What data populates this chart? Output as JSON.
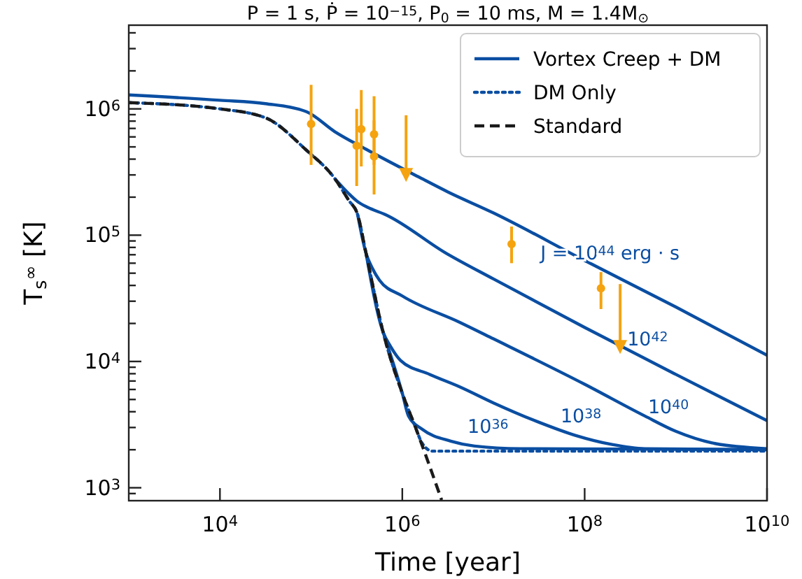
{
  "chart_data": {
    "type": "line",
    "title": "P = 1 s, Ṗ = 10$^{−15}$, P$_{0}$ = 10 ms, M = 1.4M$_{⊙}$",
    "xlabel": "Time [year]",
    "ylabel": "T$_{s}$$^{∞}$ [K]",
    "log": "xy",
    "legend": "top right",
    "xlim": [
      1000,
      10000000000
    ],
    "ylim": [
      790,
      4600000
    ],
    "xticks": [
      {
        "value": 10000,
        "label": "10$^{4}$"
      },
      {
        "value": 1000000,
        "label": "10$^{6}$"
      },
      {
        "value": 100000000,
        "label": "10$^{8}$"
      },
      {
        "value": 10000000000,
        "label": "10$^{10}$"
      }
    ],
    "yticks": [
      {
        "value": 900,
        "label": null
      },
      {
        "value": 1000,
        "label": "10$^{3}$"
      },
      {
        "value": 2000,
        "label": null
      },
      {
        "value": 3000,
        "label": null
      },
      {
        "value": 4000,
        "label": null
      },
      {
        "value": 5000,
        "label": null
      },
      {
        "value": 6000,
        "label": null
      },
      {
        "value": 7000,
        "label": null
      },
      {
        "value": 8000,
        "label": null
      },
      {
        "value": 9000,
        "label": null
      },
      {
        "value": 10000,
        "label": "10$^{4}$"
      },
      {
        "value": 20000,
        "label": null
      },
      {
        "value": 30000,
        "label": null
      },
      {
        "value": 40000,
        "label": null
      },
      {
        "value": 50000,
        "label": null
      },
      {
        "value": 60000,
        "label": null
      },
      {
        "value": 70000,
        "label": null
      },
      {
        "value": 80000,
        "label": null
      },
      {
        "value": 90000,
        "label": null
      },
      {
        "value": 100000,
        "label": "10$^{5}$"
      },
      {
        "value": 200000,
        "label": null
      },
      {
        "value": 300000,
        "label": null
      },
      {
        "value": 400000,
        "label": null
      },
      {
        "value": 500000,
        "label": null
      },
      {
        "value": 600000,
        "label": null
      },
      {
        "value": 700000,
        "label": null
      },
      {
        "value": 800000,
        "label": null
      },
      {
        "value": 900000,
        "label": null
      },
      {
        "value": 1000000,
        "label": "10$^{6}$"
      },
      {
        "value": 2000000,
        "label": null
      },
      {
        "value": 3000000,
        "label": null
      },
      {
        "value": 4000000,
        "label": null
      }
    ],
    "series": [
      {
        "name": "Vortex Creep + DM",
        "color": "#0a4ea2",
        "line_style": "solid",
        "x": [
          1000,
          10000,
          31600,
          89000,
          182000,
          398000,
          1500000,
          3160000,
          10000000,
          100000000,
          1000000000,
          10000000000
        ],
        "values": [
          1290000,
          1170000,
          1100000,
          950000,
          660000,
          480000,
          290000,
          220000,
          150000,
          63000,
          27000,
          11200
        ]
      },
      {
        "color": "#0a4ea2",
        "line_style": "solid",
        "x": [
          182000,
          257000,
          331000,
          417000,
          661000,
          3020000,
          10000000,
          100000000,
          1000000000,
          10000000000
        ],
        "values": [
          280000,
          214000,
          182000,
          166000,
          145000,
          72000,
          45000,
          18600,
          7900,
          3400
        ]
      },
      {
        "color": "#0a4ea2",
        "line_style": "solid",
        "x": [
          324000,
          400000,
          468000,
          562000,
          1000000,
          4270000,
          10000000,
          100000000,
          457000000,
          1000000000,
          2690000000,
          10000000000
        ],
        "values": [
          145000,
          72000,
          55000,
          44000,
          33000,
          20400,
          15100,
          6600,
          3700,
          2800,
          2240,
          2040
        ]
      },
      {
        "color": "#0a4ea2",
        "line_style": "solid",
        "x": [
          400000,
          617000,
          741000,
          955000,
          2000000,
          4270000,
          10000000,
          31600000,
          79000000,
          200000000,
          457000000,
          10000000000
        ],
        "values": [
          72000,
          17000,
          13200,
          10200,
          7900,
          6300,
          4700,
          3300,
          2600,
          2200,
          2040,
          2000
        ]
      },
      {
        "color": "#0a4ea2",
        "line_style": "solid",
        "x": [
          617000,
          1000000,
          1170000,
          1660000,
          3400000,
          6200000,
          20000000,
          10000000000
        ],
        "values": [
          17000,
          5600,
          3700,
          2900,
          2340,
          2140,
          2040,
          2000
        ]
      },
      {
        "name": "DM Only",
        "color": "#0a4ea2",
        "line_style": "dotted",
        "x": [
          1000,
          10000,
          31600,
          89000,
          182000,
          257000,
          324000,
          400000,
          617000,
          1000000,
          1350000,
          1660000,
          2140000,
          10000000000
        ],
        "values": [
          1120000,
          1000000,
          850000,
          470000,
          280000,
          190000,
          145000,
          72000,
          17000,
          5600,
          3200,
          2240,
          1950,
          1950
        ]
      },
      {
        "name": "Standard",
        "color": "#1a1a1a",
        "line_style": "dashed",
        "x": [
          1000,
          10000,
          31600,
          89000,
          182000,
          257000,
          324000,
          400000,
          617000,
          1000000,
          1350000,
          2700000
        ],
        "values": [
          1120000,
          1000000,
          850000,
          470000,
          280000,
          190000,
          145000,
          72000,
          17000,
          5600,
          3200,
          800
        ]
      },
      {
        "type": "scatter",
        "color": "#f5a30f",
        "marker": "circle",
        "x": [
          100000,
          316000,
          355000,
          490000,
          490000,
          15800000,
          151000000
        ],
        "values": [
          760000,
          510000,
          690000,
          630000,
          420000,
          85000,
          38000
        ],
        "errors": [
          [
            360000,
            1550000
          ],
          [
            245000,
            1000000
          ],
          [
            350000,
            1410000
          ],
          [
            360000,
            1260000
          ],
          [
            210000,
            810000
          ],
          [
            60000,
            117000
          ],
          [
            26000,
            51000
          ]
        ]
      },
      {
        "type": "scatter",
        "color": "#f5a30f",
        "marker": "triangle",
        "x": [
          1100000,
          245000000
        ],
        "values": [
          300000,
          13000
        ],
        "errors": [
          [
            300000,
            890000
          ],
          [
            13000,
            41000
          ]
        ]
      }
    ],
    "annotations": [
      {
        "text": "J = 10$^{44}$ erg · s",
        "x": 190000000,
        "y": 50000
      },
      {
        "text": "10$^{42}$",
        "x": 490000000,
        "y": 10400
      },
      {
        "text": "10$^{40}$",
        "x": 830000000,
        "y": 3000
      },
      {
        "text": "10$^{38}$",
        "x": 91000000,
        "y": 2560
      },
      {
        "text": "10$^{36}$",
        "x": 8700000,
        "y": 2110
      }
    ]
  }
}
